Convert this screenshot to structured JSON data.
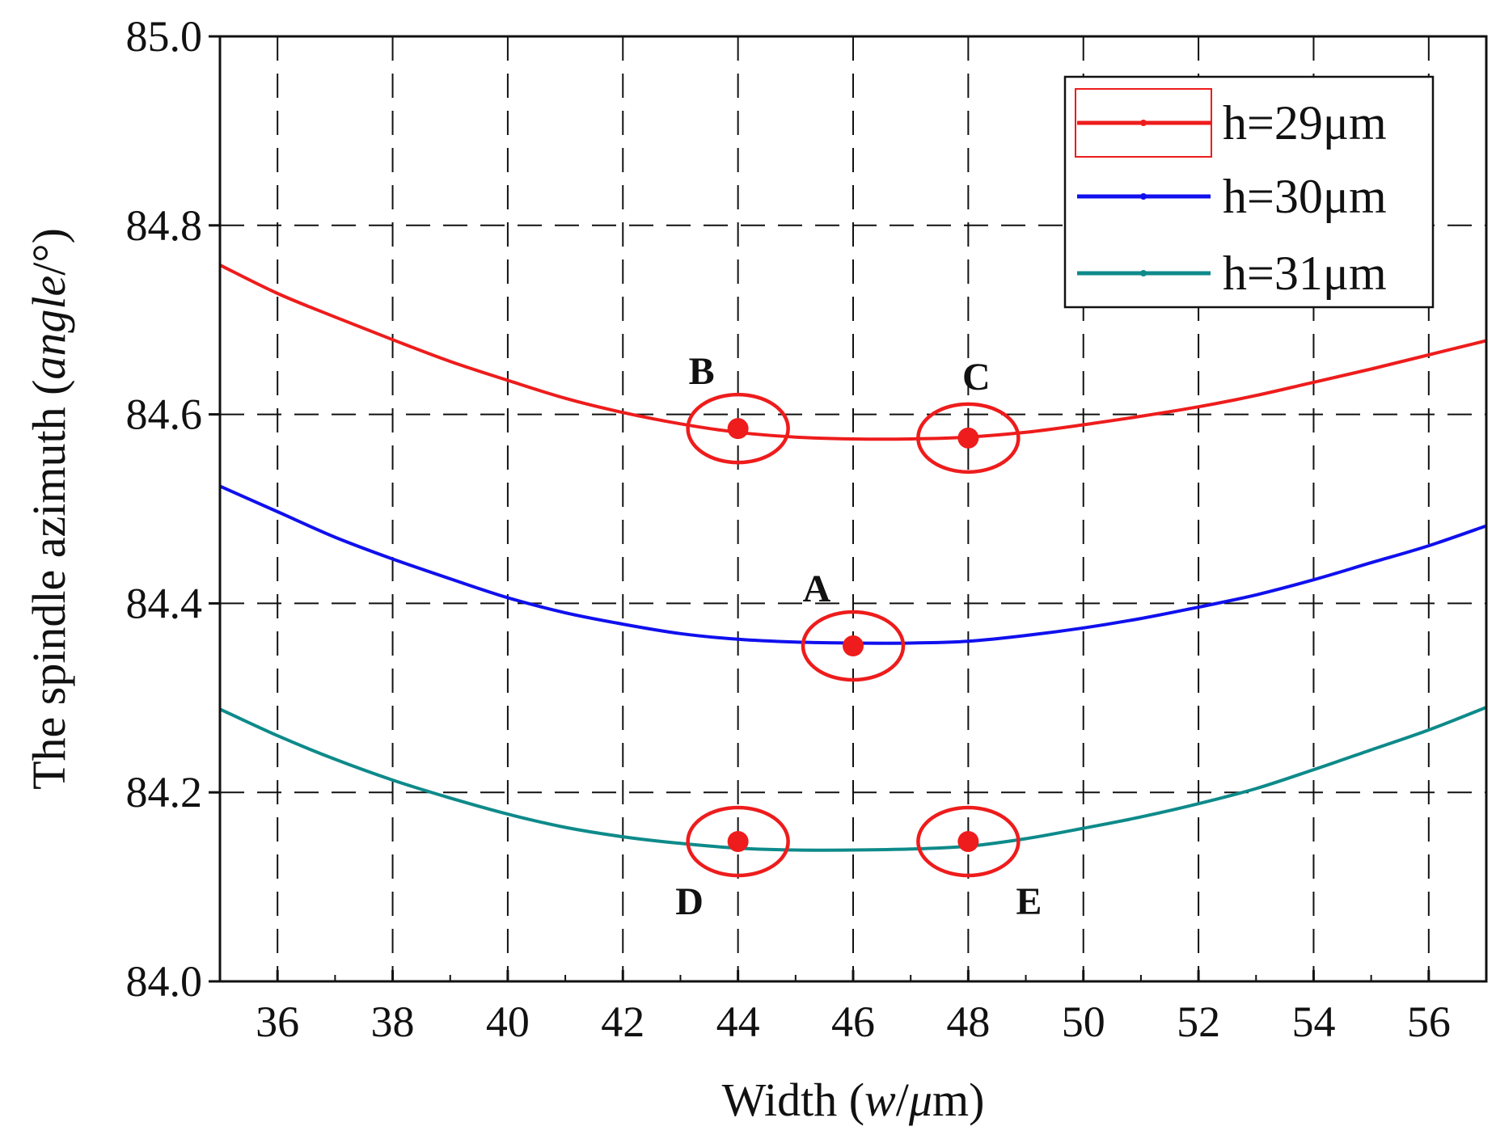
{
  "chart_data": {
    "type": "line",
    "title": "",
    "xlabel": {
      "prefix": "Width  (",
      "var": "w",
      "sep": "/",
      "unit": "μ",
      "suffix": "m)"
    },
    "ylabel": {
      "prefix": "The spindle azimuth (",
      "var": "angle",
      "suffix": "/°)"
    },
    "xlim": [
      35,
      57
    ],
    "ylim": [
      84.0,
      85.0
    ],
    "xticks": [
      36,
      38,
      40,
      42,
      44,
      46,
      48,
      50,
      52,
      54,
      56
    ],
    "xtick_labels": [
      "36",
      "38",
      "40",
      "42",
      "44",
      "46",
      "48",
      "50",
      "52",
      "54",
      "56"
    ],
    "yticks": [
      84.0,
      84.2,
      84.4,
      84.6,
      84.8,
      85.0
    ],
    "ytick_labels": [
      "84.0",
      "84.2",
      "84.4",
      "84.6",
      "84.8",
      "85.0"
    ],
    "grid": true,
    "legend_position": "top-right",
    "series": [
      {
        "name": "h=29μm",
        "color": "#ee1c1c",
        "x": [
          35,
          36,
          37,
          38,
          39,
          40,
          41,
          42,
          43,
          44,
          45,
          46,
          47,
          48,
          49,
          50,
          51,
          52,
          53,
          54,
          55,
          56,
          57
        ],
        "values": [
          84.758,
          84.728,
          84.703,
          84.679,
          84.656,
          84.636,
          84.617,
          84.602,
          84.59,
          84.581,
          84.576,
          84.574,
          84.574,
          84.576,
          84.581,
          84.589,
          84.598,
          84.608,
          84.62,
          84.634,
          84.648,
          84.663,
          84.678
        ]
      },
      {
        "name": "h=30μm",
        "color": "#1010ee",
        "x": [
          35,
          36,
          37,
          38,
          39,
          40,
          41,
          42,
          43,
          44,
          45,
          46,
          47,
          48,
          49,
          50,
          51,
          52,
          53,
          54,
          55,
          56,
          57
        ],
        "values": [
          84.524,
          84.497,
          84.47,
          84.447,
          84.426,
          84.406,
          84.39,
          84.378,
          84.368,
          84.362,
          84.359,
          84.358,
          84.358,
          84.36,
          84.366,
          84.374,
          84.384,
          84.396,
          84.409,
          84.425,
          84.443,
          84.461,
          84.482
        ]
      },
      {
        "name": "h=31μm",
        "color": "#0e8a8a",
        "x": [
          35,
          36,
          37,
          38,
          39,
          40,
          41,
          42,
          43,
          44,
          45,
          46,
          47,
          48,
          49,
          50,
          51,
          52,
          53,
          54,
          55,
          56,
          57
        ],
        "values": [
          84.288,
          84.26,
          84.235,
          84.213,
          84.194,
          84.177,
          84.163,
          84.153,
          84.146,
          84.141,
          84.139,
          84.139,
          84.14,
          84.143,
          84.151,
          84.162,
          84.174,
          84.188,
          84.204,
          84.224,
          84.245,
          84.266,
          84.29
        ]
      }
    ],
    "annotations": [
      {
        "label": "B",
        "x": 44.0,
        "y": 84.585,
        "label_side": "top-left"
      },
      {
        "label": "C",
        "x": 48.0,
        "y": 84.575,
        "label_side": "top"
      },
      {
        "label": "A",
        "x": 46.0,
        "y": 84.355,
        "label_side": "top-left"
      },
      {
        "label": "D",
        "x": 44.0,
        "y": 84.148,
        "label_side": "bottom-left"
      },
      {
        "label": "E",
        "x": 48.0,
        "y": 84.148,
        "label_side": "bottom-right"
      }
    ],
    "marker_color": "#ee1c1c"
  }
}
